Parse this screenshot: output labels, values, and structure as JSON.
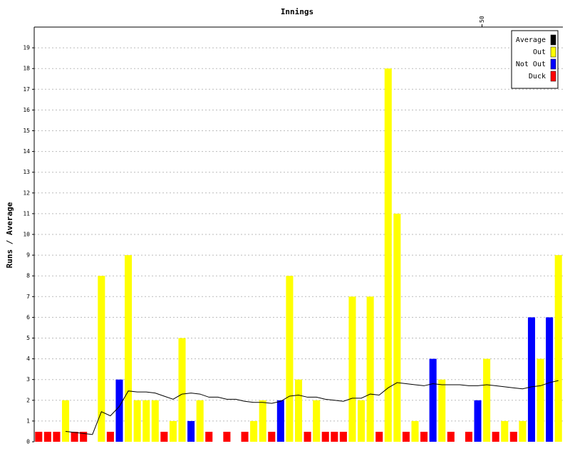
{
  "chart_data": {
    "type": "bar",
    "title": "Innings",
    "y_label": "Runs / Average",
    "x": [
      1,
      2,
      3,
      4,
      5,
      6,
      7,
      8,
      9,
      10,
      11,
      12,
      13,
      14,
      15,
      16,
      17,
      18,
      19,
      20,
      21,
      22,
      23,
      24,
      25,
      26,
      27,
      28,
      29,
      30,
      31,
      32,
      33,
      34,
      35,
      36,
      37,
      38,
      39,
      40,
      41,
      42,
      43,
      44,
      45,
      46,
      47,
      48,
      49,
      50,
      51,
      52,
      53,
      54,
      55,
      56,
      57,
      58,
      59
    ],
    "xlim": [
      0.5,
      59.5
    ],
    "xticks": [
      50
    ],
    "ylim": [
      0,
      20
    ],
    "yticks": [
      0,
      1,
      2,
      3,
      4,
      5,
      6,
      7,
      8,
      9,
      10,
      11,
      12,
      13,
      14,
      15,
      16,
      17,
      18,
      19
    ],
    "grid": true,
    "legend": "upper right",
    "series": [
      {
        "name": "Average",
        "type": "line",
        "color": "#000000",
        "values": [
          null,
          null,
          null,
          0.5,
          0.45,
          0.4,
          0.35,
          1.45,
          1.25,
          1.7,
          2.45,
          2.4,
          2.4,
          2.35,
          2.2,
          2.05,
          2.3,
          2.35,
          2.3,
          2.15,
          2.15,
          2.05,
          2.05,
          1.95,
          1.9,
          1.9,
          1.85,
          1.95,
          2.2,
          2.25,
          2.15,
          2.15,
          2.05,
          2.0,
          1.95,
          2.1,
          2.1,
          2.3,
          2.25,
          2.6,
          2.85,
          2.8,
          2.75,
          2.7,
          2.8,
          2.75,
          2.75,
          2.75,
          2.7,
          2.7,
          2.75,
          2.7,
          2.65,
          2.6,
          2.55,
          2.65,
          2.7,
          2.85,
          2.95
        ]
      },
      {
        "name": "Out",
        "type": "bar",
        "color": "#ffff00",
        "values": [
          null,
          null,
          null,
          2,
          null,
          null,
          null,
          8,
          null,
          null,
          9,
          2,
          2,
          2,
          null,
          1,
          5,
          null,
          2,
          null,
          null,
          null,
          null,
          null,
          1,
          2,
          null,
          null,
          8,
          3,
          null,
          2,
          null,
          null,
          null,
          7,
          2,
          7,
          null,
          18,
          11,
          null,
          1,
          null,
          null,
          3,
          null,
          null,
          null,
          null,
          4,
          null,
          1,
          null,
          1,
          null,
          4,
          null,
          9
        ]
      },
      {
        "name": "Not Out",
        "type": "bar",
        "color": "#0000ff",
        "values": [
          null,
          null,
          null,
          null,
          null,
          null,
          null,
          null,
          null,
          3,
          null,
          null,
          null,
          null,
          null,
          null,
          null,
          1,
          null,
          null,
          null,
          null,
          null,
          null,
          null,
          null,
          null,
          2,
          null,
          null,
          null,
          null,
          null,
          null,
          null,
          null,
          null,
          null,
          null,
          null,
          null,
          null,
          null,
          null,
          4,
          null,
          null,
          null,
          null,
          2,
          null,
          null,
          null,
          null,
          null,
          6,
          null,
          6,
          null
        ]
      },
      {
        "name": "Duck",
        "type": "bar",
        "color": "#ff0000",
        "values": [
          0,
          0,
          0,
          null,
          0,
          0,
          null,
          null,
          0,
          null,
          null,
          null,
          null,
          null,
          0,
          null,
          null,
          null,
          null,
          0,
          null,
          0,
          null,
          0,
          null,
          null,
          0,
          null,
          null,
          null,
          0,
          null,
          0,
          0,
          0,
          null,
          null,
          null,
          0,
          null,
          null,
          0,
          null,
          0,
          null,
          null,
          0,
          null,
          0,
          null,
          null,
          0,
          null,
          0,
          null,
          null,
          null,
          null,
          null
        ]
      }
    ]
  }
}
